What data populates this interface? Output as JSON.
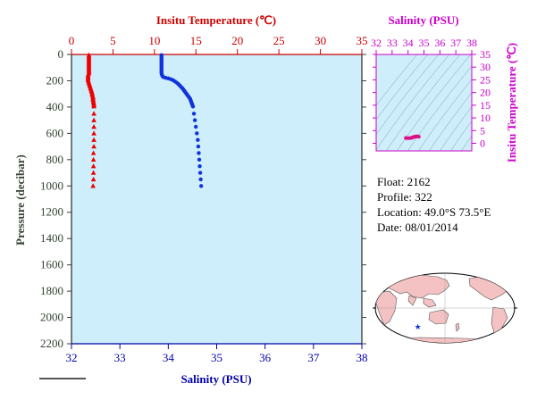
{
  "chart_data": {
    "type": "scatter",
    "profile_plot": {
      "top_axis_label": "Insitu Temperature (℃)",
      "top_ticks": [
        0,
        5,
        10,
        15,
        20,
        25,
        30,
        35
      ],
      "top_range": [
        0,
        35
      ],
      "bottom_axis_label": "Salinity (PSU)",
      "bottom_ticks": [
        32,
        33,
        34,
        35,
        36,
        37,
        38
      ],
      "bottom_range": [
        32,
        38
      ],
      "left_axis_label": "Pressure (decibar)",
      "left_ticks": [
        0,
        200,
        400,
        600,
        800,
        1000,
        1200,
        1400,
        1600,
        1800,
        2000,
        2200
      ],
      "left_range": [
        0,
        2200
      ],
      "left_inverted": true,
      "series": [
        {
          "name": "",
          "kind": "temperature",
          "color": "#ee0000",
          "marker": "triangle",
          "x_axis": "top",
          "points": [
            [
              2.1,
              5
            ],
            [
              2.1,
              15
            ],
            [
              2.1,
              25
            ],
            [
              2.1,
              35
            ],
            [
              2.1,
              45
            ],
            [
              2.1,
              55
            ],
            [
              2.1,
              65
            ],
            [
              2.1,
              75
            ],
            [
              2.1,
              85
            ],
            [
              2.1,
              95
            ],
            [
              2.1,
              105
            ],
            [
              2.1,
              115
            ],
            [
              2.1,
              125
            ],
            [
              2.1,
              135
            ],
            [
              2.1,
              145
            ],
            [
              2.0,
              155
            ],
            [
              2.0,
              165
            ],
            [
              2.0,
              175
            ],
            [
              2.0,
              185
            ],
            [
              2.0,
              195
            ],
            [
              2.05,
              205
            ],
            [
              2.1,
              215
            ],
            [
              2.15,
              225
            ],
            [
              2.2,
              235
            ],
            [
              2.25,
              245
            ],
            [
              2.3,
              255
            ],
            [
              2.35,
              265
            ],
            [
              2.4,
              275
            ],
            [
              2.45,
              285
            ],
            [
              2.5,
              295
            ],
            [
              2.5,
              305
            ],
            [
              2.55,
              315
            ],
            [
              2.6,
              325
            ],
            [
              2.6,
              335
            ],
            [
              2.6,
              345
            ],
            [
              2.65,
              355
            ],
            [
              2.65,
              365
            ],
            [
              2.7,
              375
            ],
            [
              2.7,
              385
            ],
            [
              2.7,
              395
            ],
            [
              2.7,
              450
            ],
            [
              2.7,
              500
            ],
            [
              2.7,
              550
            ],
            [
              2.7,
              600
            ],
            [
              2.7,
              650
            ],
            [
              2.7,
              700
            ],
            [
              2.65,
              750
            ],
            [
              2.65,
              800
            ],
            [
              2.65,
              850
            ],
            [
              2.65,
              900
            ],
            [
              2.65,
              950
            ],
            [
              2.6,
              1000
            ]
          ]
        },
        {
          "name": "",
          "kind": "salinity",
          "color": "#1133dd",
          "marker": "circle",
          "x_axis": "bottom",
          "points": [
            [
              33.86,
              5
            ],
            [
              33.86,
              15
            ],
            [
              33.86,
              25
            ],
            [
              33.86,
              35
            ],
            [
              33.86,
              45
            ],
            [
              33.86,
              55
            ],
            [
              33.86,
              65
            ],
            [
              33.86,
              75
            ],
            [
              33.86,
              85
            ],
            [
              33.86,
              95
            ],
            [
              33.86,
              105
            ],
            [
              33.86,
              115
            ],
            [
              33.86,
              125
            ],
            [
              33.86,
              135
            ],
            [
              33.86,
              145
            ],
            [
              33.87,
              155
            ],
            [
              33.88,
              165
            ],
            [
              33.9,
              172
            ],
            [
              33.95,
              178
            ],
            [
              34.0,
              182
            ],
            [
              34.05,
              188
            ],
            [
              34.1,
              196
            ],
            [
              34.14,
              206
            ],
            [
              34.18,
              216
            ],
            [
              34.21,
              226
            ],
            [
              34.24,
              236
            ],
            [
              34.26,
              246
            ],
            [
              34.29,
              256
            ],
            [
              34.31,
              266
            ],
            [
              34.33,
              276
            ],
            [
              34.35,
              286
            ],
            [
              34.37,
              296
            ],
            [
              34.39,
              306
            ],
            [
              34.41,
              316
            ],
            [
              34.43,
              326
            ],
            [
              34.45,
              336
            ],
            [
              34.46,
              346
            ],
            [
              34.47,
              356
            ],
            [
              34.48,
              366
            ],
            [
              34.49,
              376
            ],
            [
              34.5,
              386
            ],
            [
              34.51,
              396
            ],
            [
              34.53,
              450
            ],
            [
              34.55,
              500
            ],
            [
              34.57,
              550
            ],
            [
              34.59,
              600
            ],
            [
              34.61,
              650
            ],
            [
              34.62,
              700
            ],
            [
              34.63,
              750
            ],
            [
              34.64,
              800
            ],
            [
              34.65,
              850
            ],
            [
              34.66,
              900
            ],
            [
              34.67,
              950
            ],
            [
              34.68,
              1000
            ]
          ]
        }
      ]
    },
    "ts_plot": {
      "top_axis_label": "Salinity (PSU)",
      "top_ticks": [
        32,
        33,
        34,
        35,
        36,
        37,
        38
      ],
      "x_range": [
        32,
        38
      ],
      "right_axis_label": "Insitu Temperature (℃)",
      "right_ticks": [
        0,
        5,
        10,
        15,
        20,
        25,
        30,
        35
      ],
      "y_range": [
        -3,
        35
      ],
      "series": [
        {
          "name": "",
          "color": "#dd1188",
          "points": [
            [
              33.86,
              2.1
            ],
            [
              33.88,
              2.05
            ],
            [
              33.95,
              2.0
            ],
            [
              34.05,
              2.0
            ],
            [
              34.14,
              2.05
            ],
            [
              34.21,
              2.15
            ],
            [
              34.26,
              2.25
            ],
            [
              34.31,
              2.35
            ],
            [
              34.35,
              2.45
            ],
            [
              34.39,
              2.55
            ],
            [
              34.43,
              2.6
            ],
            [
              34.47,
              2.65
            ],
            [
              34.5,
              2.7
            ],
            [
              34.55,
              2.7
            ],
            [
              34.6,
              2.7
            ],
            [
              34.64,
              2.65
            ],
            [
              34.68,
              2.6
            ]
          ]
        }
      ]
    },
    "map": {
      "marker": {
        "lat": -49.0,
        "lon": 73.5,
        "color": "#1133dd"
      }
    }
  },
  "info": {
    "float": "Float:  2162",
    "profile": "Profile:  322",
    "location": "Location:  49.0°S  73.5°E",
    "date": "Date:  08/01/2014"
  },
  "colors": {
    "temperature_axis": "#cc0000",
    "salinity_axis": "#0000aa",
    "pressure_axis": "#334433",
    "ts_axis": "#cc00cc",
    "plot_bg": "#cdeefa",
    "map_ocean": "#ffffff",
    "map_land": "#f4c2c2"
  }
}
